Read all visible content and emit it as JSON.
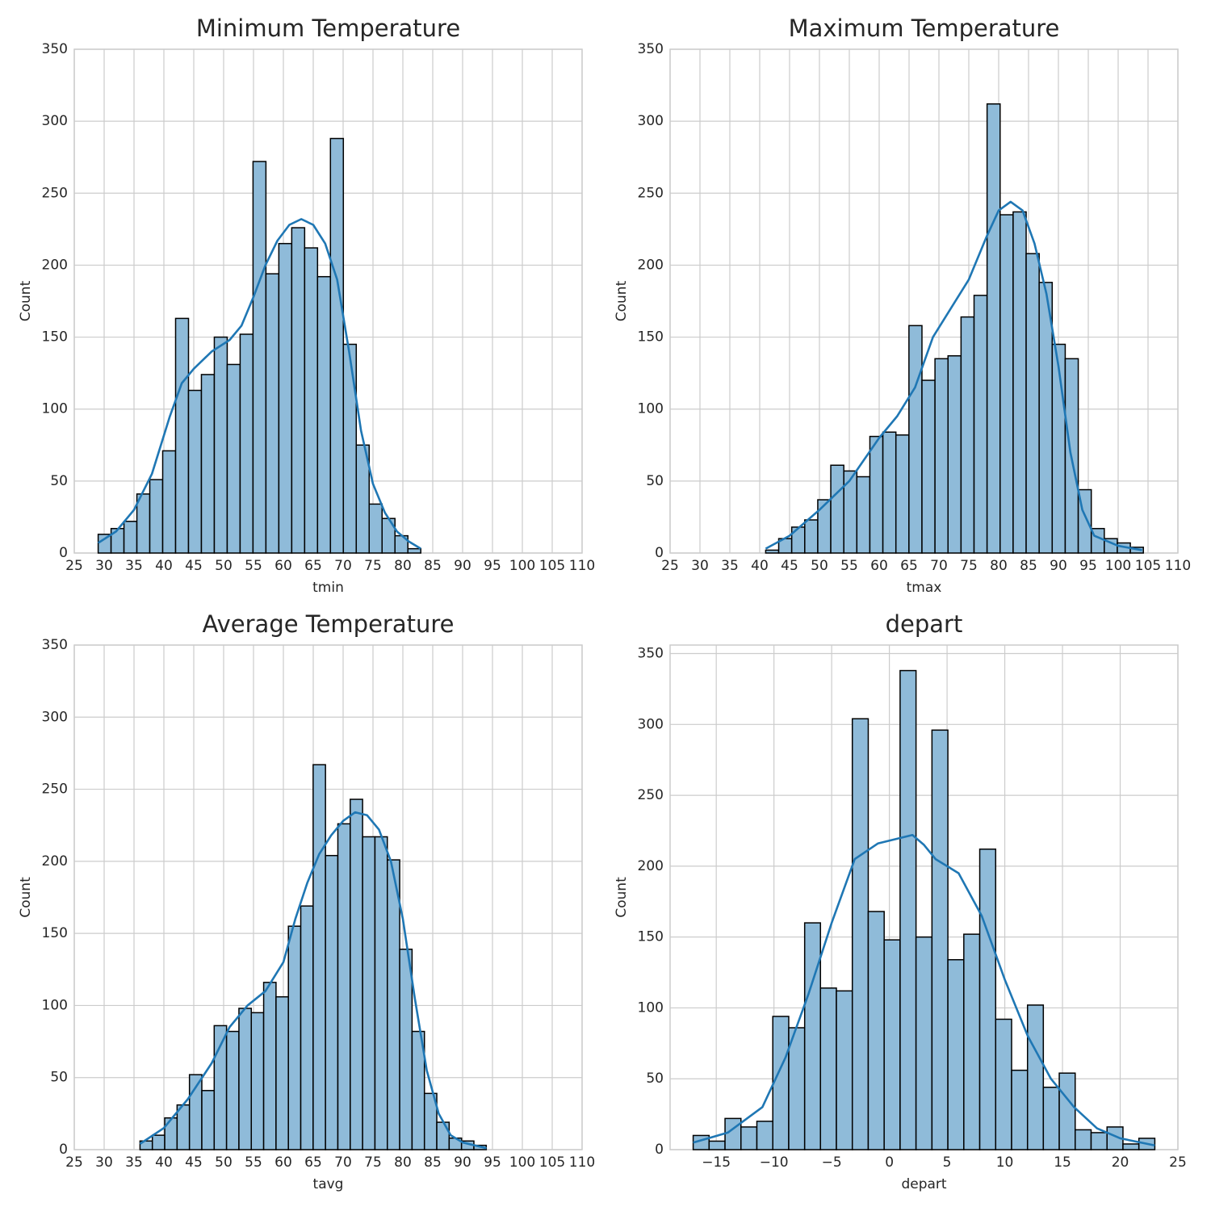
{
  "chart_data": [
    {
      "type": "histogram",
      "title": "Minimum Temperature",
      "xlabel": "tmin",
      "ylabel": "Count",
      "bins": [
        29,
        31.16,
        33.32,
        35.48,
        37.64,
        39.8,
        41.96,
        44.12,
        46.28,
        48.44,
        50.6,
        52.76,
        54.92,
        57.08,
        59.24,
        61.4,
        63.56,
        65.72,
        67.88,
        70.04,
        72.2,
        74.36,
        76.52,
        78.68,
        80.84,
        83
      ],
      "counts": [
        13,
        17,
        22,
        41,
        51,
        71,
        163,
        113,
        124,
        150,
        131,
        152,
        272,
        194,
        215,
        226,
        212,
        192,
        288,
        145,
        75,
        34,
        24,
        12,
        3
      ],
      "color": "#8fbbd9",
      "edgecolor": "#000000",
      "kde": {
        "color": "#1f77b4",
        "x": [
          29,
          32,
          35,
          38,
          41,
          43,
          45,
          48,
          51,
          53,
          55,
          57,
          59,
          61,
          63,
          65,
          67,
          69,
          71,
          73,
          75,
          77,
          79,
          81,
          83
        ],
        "y": [
          7,
          15,
          30,
          55,
          95,
          118,
          128,
          140,
          148,
          158,
          178,
          200,
          217,
          228,
          232,
          228,
          215,
          190,
          140,
          85,
          48,
          28,
          15,
          8,
          3
        ]
      },
      "xlim": [
        25,
        110
      ],
      "ylim": [
        0,
        350
      ],
      "xticks": [
        25,
        30,
        35,
        40,
        45,
        50,
        55,
        60,
        65,
        70,
        75,
        80,
        85,
        90,
        95,
        100,
        105,
        110
      ],
      "yticks": [
        0,
        50,
        100,
        150,
        200,
        250,
        300,
        350
      ],
      "grid": true
    },
    {
      "type": "histogram",
      "title": "Maximum Temperature",
      "xlabel": "tmax",
      "ylabel": "Count",
      "bins": [
        41,
        43.18,
        45.36,
        47.54,
        49.72,
        51.9,
        54.08,
        56.26,
        58.44,
        60.62,
        62.8,
        64.98,
        67.16,
        69.34,
        71.52,
        73.7,
        75.88,
        78.06,
        80.24,
        82.42,
        84.6,
        86.78,
        88.96,
        91.14,
        93.32,
        95.5,
        97.68,
        99.86,
        102.04,
        104.22
      ],
      "counts": [
        2,
        10,
        18,
        23,
        37,
        61,
        57,
        53,
        81,
        84,
        82,
        158,
        120,
        135,
        137,
        164,
        179,
        312,
        235,
        237,
        208,
        188,
        145,
        135,
        44,
        17,
        10,
        7,
        4
      ],
      "color": "#8fbbd9",
      "edgecolor": "#000000",
      "kde": {
        "color": "#1f77b4",
        "x": [
          41,
          45,
          50,
          55,
          60,
          63,
          66,
          69,
          72,
          75,
          78,
          80,
          82,
          84,
          86,
          88,
          90,
          92,
          94,
          96,
          100,
          104
        ],
        "y": [
          3,
          12,
          30,
          50,
          80,
          95,
          115,
          150,
          170,
          190,
          220,
          238,
          244,
          238,
          215,
          180,
          130,
          70,
          30,
          12,
          5,
          2
        ]
      },
      "xlim": [
        25,
        110
      ],
      "ylim": [
        0,
        350
      ],
      "xticks": [
        25,
        30,
        35,
        40,
        45,
        50,
        55,
        60,
        65,
        70,
        75,
        80,
        85,
        90,
        95,
        100,
        105,
        110
      ],
      "yticks": [
        0,
        50,
        100,
        150,
        200,
        250,
        300,
        350
      ],
      "grid": true
    },
    {
      "type": "histogram",
      "title": "Average Temperature",
      "xlabel": "tavg",
      "ylabel": "Count",
      "bins": [
        36,
        38.07,
        40.14,
        42.21,
        44.28,
        46.35,
        48.42,
        50.49,
        52.56,
        54.63,
        56.7,
        58.77,
        60.84,
        62.91,
        64.98,
        67.05,
        69.12,
        71.19,
        73.26,
        75.33,
        77.4,
        79.47,
        81.54,
        83.61,
        85.68,
        87.75,
        89.82,
        91.89,
        93.96
      ],
      "counts": [
        6,
        10,
        22,
        31,
        52,
        41,
        86,
        82,
        98,
        95,
        116,
        106,
        155,
        169,
        267,
        204,
        226,
        243,
        217,
        217,
        201,
        139,
        82,
        39,
        19,
        8,
        6,
        3
      ],
      "color": "#8fbbd9",
      "edgecolor": "#000000",
      "kde": {
        "color": "#1f77b4",
        "x": [
          36,
          40,
          44,
          48,
          51,
          54,
          57,
          60,
          62,
          64,
          66,
          68,
          70,
          72,
          74,
          76,
          78,
          80,
          82,
          84,
          86,
          88,
          90,
          94
        ],
        "y": [
          4,
          15,
          35,
          60,
          85,
          100,
          110,
          130,
          160,
          185,
          205,
          218,
          228,
          234,
          232,
          222,
          200,
          160,
          105,
          55,
          25,
          10,
          5,
          1
        ]
      },
      "xlim": [
        25,
        110
      ],
      "ylim": [
        0,
        350
      ],
      "xticks": [
        25,
        30,
        35,
        40,
        45,
        50,
        55,
        60,
        65,
        70,
        75,
        80,
        85,
        90,
        95,
        100,
        105,
        110
      ],
      "yticks": [
        0,
        50,
        100,
        150,
        200,
        250,
        300,
        350
      ],
      "grid": true
    },
    {
      "type": "histogram",
      "title": "depart",
      "xlabel": "depart",
      "ylabel": "Count",
      "bins": [
        -17,
        -15.62,
        -14.24,
        -12.86,
        -11.48,
        -10.1,
        -8.72,
        -7.34,
        -5.97,
        -4.59,
        -3.21,
        -1.83,
        -0.45,
        0.93,
        2.31,
        3.69,
        5.07,
        6.45,
        7.83,
        9.21,
        10.59,
        11.97,
        13.34,
        14.72,
        16.1,
        17.48,
        18.86,
        20.24,
        21.62,
        23
      ],
      "counts": [
        10,
        6,
        22,
        16,
        20,
        94,
        86,
        160,
        114,
        112,
        304,
        168,
        148,
        338,
        150,
        296,
        134,
        152,
        212,
        92,
        56,
        102,
        44,
        54,
        14,
        12,
        16,
        4,
        8
      ],
      "color": "#8fbbd9",
      "edgecolor": "#000000",
      "kde": {
        "color": "#1f77b4",
        "x": [
          -17,
          -14,
          -11,
          -9,
          -7,
          -5,
          -3,
          -1,
          1,
          2,
          3,
          4,
          6,
          8,
          10,
          12,
          14,
          16,
          18,
          20,
          23
        ],
        "y": [
          5,
          12,
          30,
          65,
          110,
          160,
          205,
          216,
          220,
          222,
          215,
          205,
          195,
          165,
          120,
          80,
          50,
          30,
          15,
          8,
          3
        ]
      },
      "xlim": [
        -19,
        25
      ],
      "ylim": [
        0,
        356
      ],
      "xticks": [
        {
          "value": -15,
          "label": "−15"
        },
        {
          "value": -10,
          "label": "−10"
        },
        {
          "value": -5,
          "label": "−5"
        },
        0,
        5,
        10,
        15,
        20,
        25
      ],
      "yticks": [
        0,
        50,
        100,
        150,
        200,
        250,
        300,
        350
      ],
      "grid": true
    }
  ]
}
